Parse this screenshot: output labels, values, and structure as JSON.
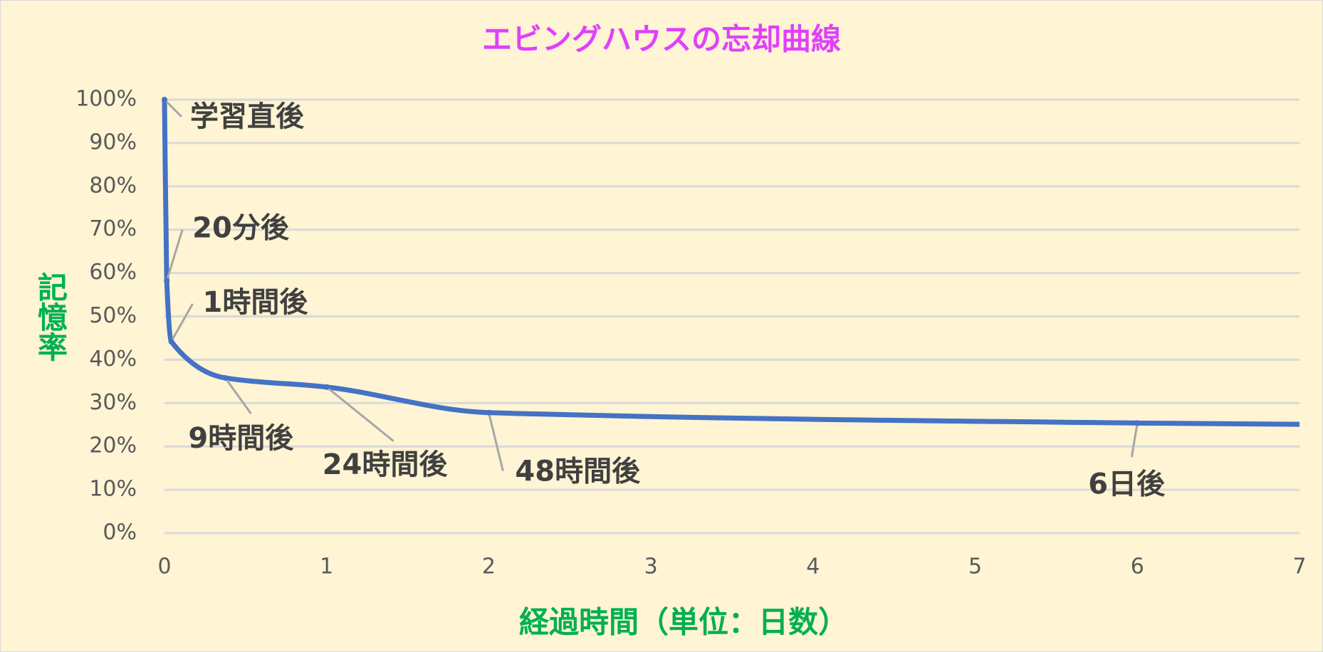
{
  "chart_data": {
    "type": "line",
    "title": "エビングハウスの忘却曲線",
    "y_label": "記憶率",
    "x_label": "経過時間（単位：日数）",
    "x": [
      0,
      0.0139,
      0.0417,
      0.375,
      1,
      2,
      6,
      7
    ],
    "series": [
      {
        "name": "記憶率",
        "color": "#4472c4",
        "values": [
          100,
          58.2,
          44.2,
          35.8,
          33.7,
          27.8,
          25.4,
          25.1
        ],
        "point_labels": [
          "学習直後",
          "20分後",
          "1時間後",
          "9時間後",
          "24時間後",
          "48時間後",
          "6日後",
          null
        ]
      }
    ],
    "xlim": [
      0,
      7
    ],
    "xticks": [
      0,
      1,
      2,
      3,
      4,
      5,
      6,
      7
    ],
    "ylim": [
      0,
      100
    ],
    "yticks": [
      {
        "value": 0,
        "label": "0%"
      },
      {
        "value": 10,
        "label": "10%"
      },
      {
        "value": 20,
        "label": "20%"
      },
      {
        "value": 30,
        "label": "30%"
      },
      {
        "value": 40,
        "label": "40%"
      },
      {
        "value": 50,
        "label": "50%"
      },
      {
        "value": 60,
        "label": "60%"
      },
      {
        "value": 70,
        "label": "70%"
      },
      {
        "value": 80,
        "label": "80%"
      },
      {
        "value": 90,
        "label": "90%"
      },
      {
        "value": 100,
        "label": "100%"
      }
    ],
    "grid": true,
    "title_color": "#e040fb",
    "axis_label_color": "#00b050"
  }
}
